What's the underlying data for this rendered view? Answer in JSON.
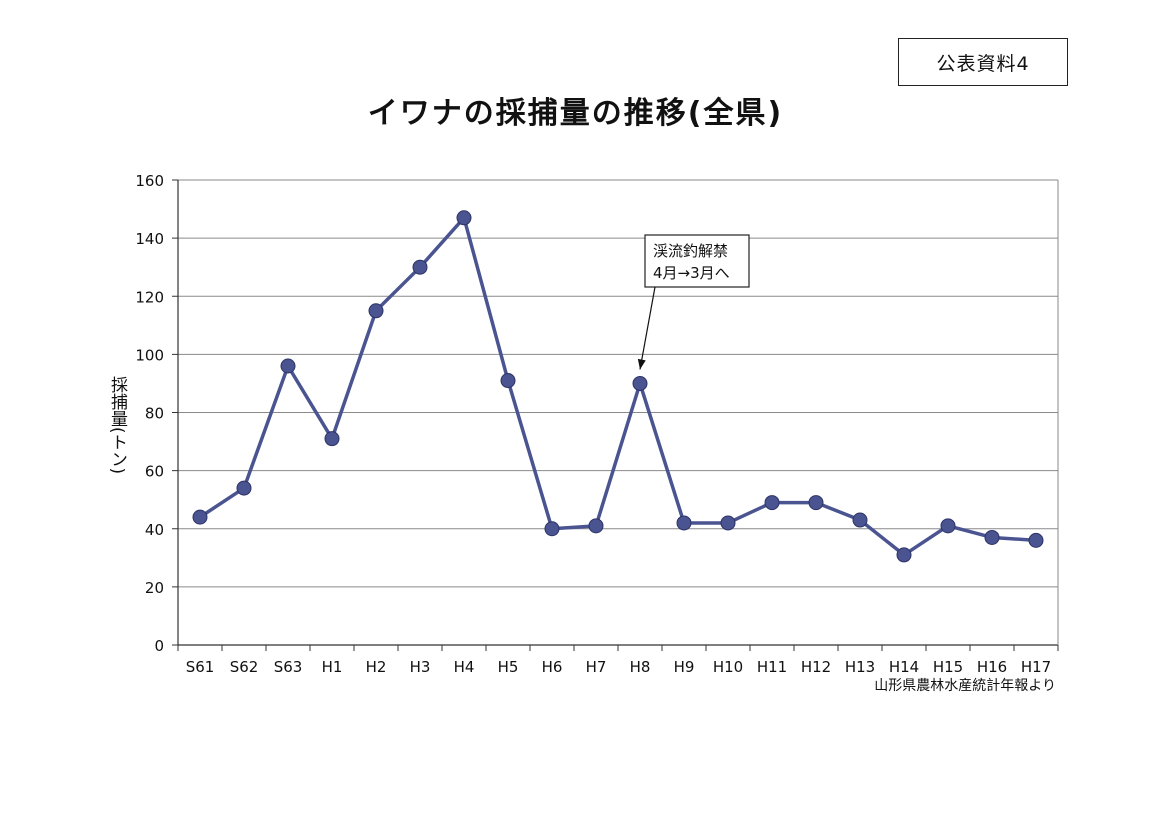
{
  "badge": "公表資料4",
  "chart_data": {
    "type": "line",
    "title": "イワナの採捕量の推移(全県)",
    "ylabel": "採捕量(トン)",
    "xlabel": "",
    "ylim": [
      0,
      160
    ],
    "yticks": [
      0,
      20,
      40,
      60,
      80,
      100,
      120,
      140,
      160
    ],
    "grid": true,
    "legend": "none",
    "line_color": "#4a5491",
    "categories": [
      "S61",
      "S62",
      "S63",
      "H1",
      "H2",
      "H3",
      "H4",
      "H5",
      "H6",
      "H7",
      "H8",
      "H9",
      "H10",
      "H11",
      "H12",
      "H13",
      "H14",
      "H15",
      "H16",
      "H17"
    ],
    "values": [
      44,
      54,
      96,
      71,
      115,
      130,
      147,
      91,
      40,
      41,
      90,
      42,
      42,
      49,
      49,
      43,
      31,
      41,
      37,
      36
    ],
    "annotation": {
      "lines": [
        "渓流釣解禁",
        "4月→3月へ"
      ],
      "target_category": "H8"
    },
    "source": "山形県農林水産統計年報より"
  }
}
